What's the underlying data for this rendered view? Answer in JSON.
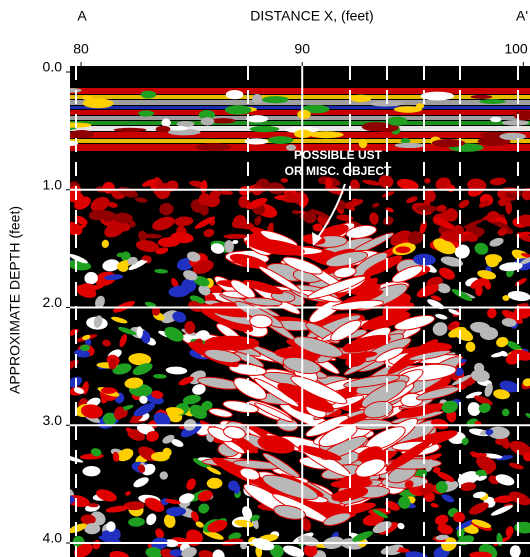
{
  "chart_data": {
    "type": "radargram",
    "title": "DISTANCE X, (feet)",
    "left_label": "A",
    "right_label": "A'",
    "y_label": "APPROXIMATE DEPTH (feet)",
    "annotation": [
      "POSSIBLE UST",
      "OR MISC. OBJECT"
    ],
    "xlim": [
      79.5,
      100.3
    ],
    "xticks": [
      80,
      90,
      100
    ],
    "ylim": [
      0,
      4
    ],
    "yticks": [
      {
        "value": 0,
        "label": "0.0"
      },
      {
        "value": 1,
        "label": "1.0"
      },
      {
        "value": 2,
        "label": "2.0"
      },
      {
        "value": 3,
        "label": "3.0"
      },
      {
        "value": 4,
        "label": "4.0"
      }
    ],
    "grid": true
  }
}
